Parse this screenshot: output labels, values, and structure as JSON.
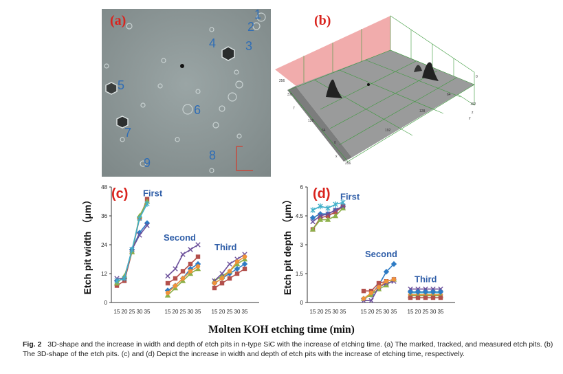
{
  "panel_a": {
    "tag": "(a)",
    "labels": [
      "1",
      "2",
      "3",
      "4",
      "5",
      "6",
      "7",
      "8",
      "9"
    ]
  },
  "panel_b": {
    "tag": "(b)",
    "tick_labels": [
      "256",
      "3.0",
      "7",
      "128",
      "64",
      "0",
      "192",
      "256",
      "64",
      "128",
      "192",
      "0"
    ],
    "axis_letters": [
      "x",
      "y",
      "z"
    ]
  },
  "x_axis_title": "Molten KOH etching time (min)",
  "chart_data": [
    {
      "type": "line",
      "tag": "(c)",
      "ylabel": "Etch pit width （μm）",
      "ylim": [
        0,
        48
      ],
      "yticks": [
        0,
        12,
        24,
        36,
        48
      ],
      "xticks": [
        15,
        20,
        25,
        30,
        35
      ],
      "groups": [
        {
          "label": "First",
          "series": [
            {
              "color": "#2e7bc4",
              "marker": "diamond",
              "values": [
                9,
                10,
                22,
                29,
                33
              ]
            },
            {
              "color": "#b3504c",
              "marker": "square",
              "values": [
                7,
                9,
                21,
                35,
                43
              ]
            },
            {
              "color": "#8db04a",
              "marker": "triangle",
              "values": [
                8,
                11,
                21,
                36,
                42
              ]
            },
            {
              "color": "#6b4f9a",
              "marker": "x",
              "values": [
                10,
                10,
                22,
                28,
                32
              ]
            },
            {
              "color": "#40afc9",
              "marker": "star",
              "values": [
                9,
                10,
                22,
                35,
                41
              ]
            }
          ]
        },
        {
          "label": "Second",
          "series": [
            {
              "color": "#2e7bc4",
              "marker": "diamond",
              "values": [
                5,
                7,
                10,
                14,
                16
              ]
            },
            {
              "color": "#b3504c",
              "marker": "square",
              "values": [
                8,
                10,
                13,
                16,
                19
              ]
            },
            {
              "color": "#8db04a",
              "marker": "triangle",
              "values": [
                3,
                6,
                9,
                12,
                14
              ]
            },
            {
              "color": "#6b4f9a",
              "marker": "x",
              "values": [
                11,
                14,
                20,
                22,
                24
              ]
            },
            {
              "color": "#f0923a",
              "marker": "circle",
              "values": [
                4,
                7,
                10,
                13,
                15
              ]
            }
          ]
        },
        {
          "label": "Third",
          "series": [
            {
              "color": "#2e7bc4",
              "marker": "diamond",
              "values": [
                8,
                10,
                12,
                14,
                16
              ]
            },
            {
              "color": "#b3504c",
              "marker": "square",
              "values": [
                6,
                8,
                10,
                12,
                14
              ]
            },
            {
              "color": "#8db04a",
              "marker": "triangle",
              "values": [
                9,
                11,
                13,
                16,
                18
              ]
            },
            {
              "color": "#6b4f9a",
              "marker": "x",
              "values": [
                9,
                12,
                16,
                18,
                20
              ]
            },
            {
              "color": "#f0923a",
              "marker": "circle",
              "values": [
                8,
                10,
                13,
                17,
                19
              ]
            }
          ]
        }
      ]
    },
    {
      "type": "line",
      "tag": "(d)",
      "ylabel": "Etch pit depth （μm）",
      "ylim": [
        0,
        6
      ],
      "yticks": [
        0,
        1.5,
        3,
        4.5,
        6
      ],
      "xticks": [
        15,
        20,
        25,
        30,
        35
      ],
      "groups": [
        {
          "label": "First",
          "series": [
            {
              "color": "#2e7bc4",
              "marker": "diamond",
              "values": [
                4.4,
                4.6,
                4.6,
                4.8,
                5.0
              ]
            },
            {
              "color": "#b3504c",
              "marker": "square",
              "values": [
                3.8,
                4.4,
                4.5,
                4.7,
                5.0
              ]
            },
            {
              "color": "#8db04a",
              "marker": "triangle",
              "values": [
                3.8,
                4.3,
                4.3,
                4.5,
                4.9
              ]
            },
            {
              "color": "#6b4f9a",
              "marker": "x",
              "values": [
                4.2,
                4.5,
                4.6,
                4.8,
                5.0
              ]
            },
            {
              "color": "#40afc9",
              "marker": "star",
              "values": [
                4.8,
                5.0,
                4.9,
                5.1,
                5.2
              ]
            }
          ]
        },
        {
          "label": "Second",
          "series": [
            {
              "color": "#2e7bc4",
              "marker": "diamond",
              "values": [
                0.2,
                0.4,
                0.9,
                1.6,
                2.0
              ]
            },
            {
              "color": "#b3504c",
              "marker": "square",
              "values": [
                0.6,
                0.6,
                1.0,
                1.1,
                1.2
              ]
            },
            {
              "color": "#8db04a",
              "marker": "triangle",
              "values": [
                0.2,
                0.4,
                0.7,
                0.9,
                1.2
              ]
            },
            {
              "color": "#6b4f9a",
              "marker": "x",
              "values": [
                0.1,
                0.1,
                0.8,
                1.0,
                1.1
              ]
            },
            {
              "color": "#f0923a",
              "marker": "circle",
              "values": [
                0.2,
                0.5,
                0.8,
                1.1,
                1.2
              ]
            }
          ]
        },
        {
          "label": "Third",
          "series": [
            {
              "color": "#6b4f9a",
              "marker": "x",
              "values": [
                0.7,
                0.7,
                0.7,
                0.7,
                0.7
              ]
            },
            {
              "color": "#40afc9",
              "marker": "star",
              "values": [
                0.5,
                0.5,
                0.5,
                0.5,
                0.5
              ]
            },
            {
              "color": "#f0923a",
              "marker": "circle",
              "values": [
                0.4,
                0.4,
                0.4,
                0.4,
                0.4
              ]
            },
            {
              "color": "#8db04a",
              "marker": "triangle",
              "values": [
                0.35,
                0.35,
                0.35,
                0.35,
                0.35
              ]
            },
            {
              "color": "#b3504c",
              "marker": "square",
              "values": [
                0.25,
                0.25,
                0.25,
                0.25,
                0.25
              ]
            },
            {
              "color": "#2e7bc4",
              "marker": "diamond",
              "values": [
                0.55,
                0.55,
                0.55,
                0.55,
                0.55
              ]
            }
          ]
        }
      ]
    }
  ],
  "caption": {
    "fig": "Fig. 2",
    "text": "3D-shape and the increase in width and depth of etch pits in n-type SiC with the increase of etching time. (a) The marked, tracked, and measured etch pits. (b) The 3D-shape of the etch pits. (c) and (d) Depict the increase in width and depth of etch pits with the increase of etching time, respectively."
  }
}
